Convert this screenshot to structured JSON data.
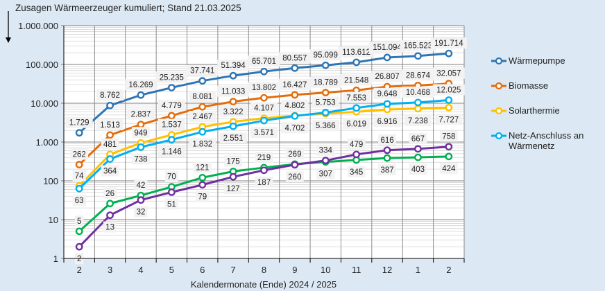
{
  "chart_data": {
    "type": "line",
    "title": "Zusagen Wärmeerzeuger kumuliert; Stand  21.03.2025",
    "xlabel": "Kalendermonate (Ende) 2024 / 2025",
    "ylabel": "",
    "y_scale": "log",
    "ylim": [
      1,
      1000000
    ],
    "y_ticks": [
      "1",
      "10",
      "100",
      "1.000",
      "10.000",
      "100.000",
      "1.000.000"
    ],
    "grid": true,
    "legend": "right",
    "categories": [
      "2",
      "3",
      "4",
      "5",
      "6",
      "7",
      "8",
      "9",
      "10",
      "11",
      "12",
      "1",
      "2"
    ],
    "series": [
      {
        "name": "Wärmepumpe",
        "color": "#2e75b6",
        "values": [
          1729,
          8762,
          16269,
          25235,
          37741,
          51394,
          65701,
          80557,
          95099,
          113612,
          151094,
          165523,
          191714
        ]
      },
      {
        "name": "Biomasse",
        "color": "#e46c0a",
        "values": [
          262,
          1513,
          2837,
          4779,
          8081,
          11033,
          13802,
          16427,
          18789,
          21548,
          26807,
          28674,
          32057
        ]
      },
      {
        "name": "Solarthermie",
        "color": "#ffc000",
        "values": [
          74,
          481,
          949,
          1537,
          2467,
          3322,
          4107,
          4802,
          5366,
          6019,
          6916,
          7238,
          7727
        ]
      },
      {
        "name": "Netz-Anschluss an Wärmenetz",
        "color": "#00b0f0",
        "values": [
          63,
          364,
          738,
          1146,
          1832,
          2551,
          3571,
          4702,
          5753,
          7553,
          9648,
          10468,
          12025
        ]
      },
      {
        "color": "#00b050",
        "values": [
          5,
          26,
          42,
          70,
          121,
          175,
          219,
          269,
          307,
          345,
          387,
          403,
          424
        ]
      },
      {
        "color": "#7030a0",
        "values": [
          2,
          13,
          32,
          51,
          79,
          127,
          187,
          260,
          334,
          479,
          616,
          667,
          758
        ]
      }
    ]
  },
  "legend": {
    "items": [
      "Wärmepumpe",
      "Biomasse",
      "Solarthermie",
      "Netz-Anschluss an",
      "Wärmenetz"
    ]
  }
}
